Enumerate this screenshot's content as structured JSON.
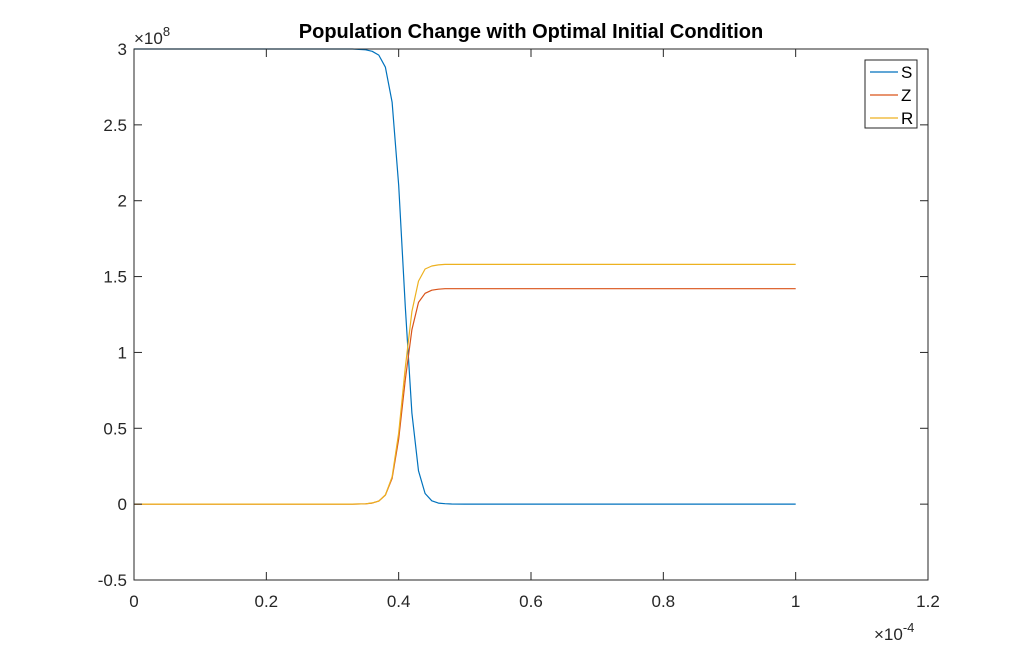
{
  "chart_data": {
    "type": "line",
    "title": "Population Change with Optimal Initial Condition",
    "xlabel": "",
    "ylabel": "",
    "x_scale_exponent_label": "×10",
    "x_scale_exponent": "-4",
    "y_scale_exponent_label": "×10",
    "y_scale_exponent": "8",
    "xlim": [
      0,
      1.2
    ],
    "ylim": [
      -0.5,
      3
    ],
    "x_ticks": [
      0,
      0.2,
      0.4,
      0.6,
      0.8,
      1,
      1.2
    ],
    "x_tick_labels": [
      "0",
      "0.2",
      "0.4",
      "0.6",
      "0.8",
      "1",
      "1.2"
    ],
    "y_ticks": [
      -0.5,
      0,
      0.5,
      1,
      1.5,
      2,
      2.5,
      3
    ],
    "y_tick_labels": [
      "-0.5",
      "0",
      "0.5",
      "1",
      "1.5",
      "2",
      "2.5",
      "3"
    ],
    "grid": false,
    "legend_position": "top-right",
    "x": [
      0,
      0.05,
      0.1,
      0.15,
      0.2,
      0.25,
      0.3,
      0.33,
      0.35,
      0.36,
      0.37,
      0.38,
      0.39,
      0.4,
      0.41,
      0.42,
      0.43,
      0.44,
      0.45,
      0.46,
      0.47,
      0.48,
      0.5,
      0.55,
      0.6,
      0.7,
      0.8,
      0.9,
      1.0
    ],
    "series": [
      {
        "name": "S",
        "color": "#0072BD",
        "values": [
          3.0,
          3.0,
          3.0,
          3.0,
          3.0,
          3.0,
          3.0,
          3.0,
          2.995,
          2.985,
          2.96,
          2.88,
          2.65,
          2.1,
          1.3,
          0.6,
          0.22,
          0.07,
          0.022,
          0.007,
          0.003,
          0.001,
          0.0,
          0.0,
          0.0,
          0.0,
          0.0,
          0.0,
          0.0
        ]
      },
      {
        "name": "Z",
        "color": "#D95319",
        "values": [
          0.0,
          0.0,
          0.0,
          0.0,
          0.0,
          0.0,
          0.0,
          0.0,
          0.002,
          0.007,
          0.02,
          0.06,
          0.17,
          0.43,
          0.82,
          1.15,
          1.33,
          1.39,
          1.41,
          1.417,
          1.42,
          1.42,
          1.42,
          1.42,
          1.42,
          1.42,
          1.42,
          1.42,
          1.42
        ]
      },
      {
        "name": "R",
        "color": "#EDB120",
        "values": [
          0.0,
          0.0,
          0.0,
          0.0,
          0.0,
          0.0,
          0.0,
          0.0,
          0.002,
          0.008,
          0.02,
          0.06,
          0.18,
          0.47,
          0.9,
          1.27,
          1.47,
          1.55,
          1.57,
          1.577,
          1.58,
          1.58,
          1.58,
          1.58,
          1.58,
          1.58,
          1.58,
          1.58,
          1.58
        ]
      }
    ]
  }
}
